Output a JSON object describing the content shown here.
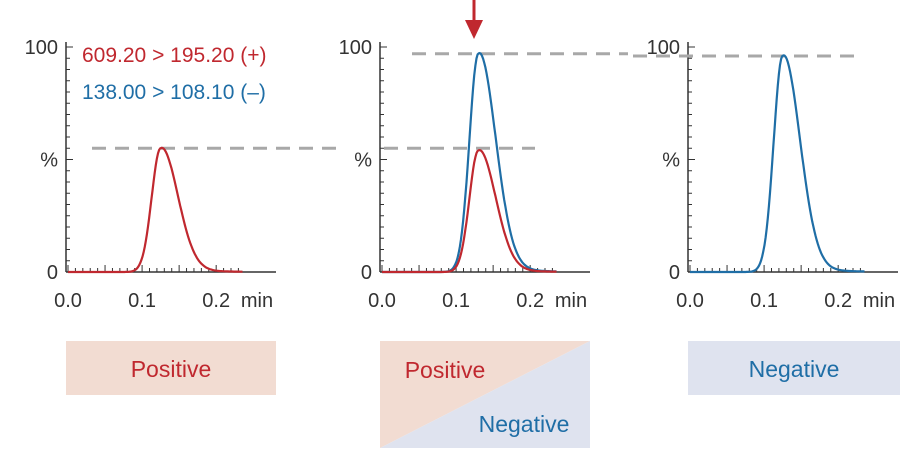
{
  "colors": {
    "positive": "#c0282f",
    "negative": "#1f6ea6",
    "dash": "#a8a8a8",
    "axis": "#333333",
    "pos_box": "#f2dcd2",
    "neg_box": "#dfe3ef",
    "arrow": "#c0282f"
  },
  "legend": {
    "positive": "609.20 > 195.20 (+)",
    "negative": "138.00 > 108.10 (–)"
  },
  "boxes": {
    "left": "Positive",
    "middle_pos": "Positive",
    "middle_neg": "Negative",
    "right": "Negative"
  },
  "chart_data": [
    {
      "type": "line",
      "x_ticks": [
        "0.0",
        "0.1",
        "0.2"
      ],
      "x_unit": "min",
      "y_ticks": [
        "0",
        "%",
        "100"
      ],
      "xlim": [
        0.0,
        0.235
      ],
      "ylim": [
        0,
        100
      ],
      "peak_reference": 55,
      "series": [
        {
          "key": "positive",
          "apex_x": 0.125,
          "apex_y": 55
        }
      ]
    },
    {
      "type": "line",
      "x_ticks": [
        "0.0",
        "0.1",
        "0.2"
      ],
      "x_unit": "min",
      "y_ticks": [
        "0",
        "%",
        "100"
      ],
      "xlim": [
        0.0,
        0.235
      ],
      "ylim": [
        0,
        100
      ],
      "peak_references": [
        55,
        97
      ],
      "series": [
        {
          "key": "negative",
          "apex_x": 0.13,
          "apex_y": 97
        },
        {
          "key": "positive",
          "apex_x": 0.13,
          "apex_y": 54
        }
      ]
    },
    {
      "type": "line",
      "x_ticks": [
        "0.0",
        "0.1",
        "0.2"
      ],
      "x_unit": "min",
      "y_ticks": [
        "0",
        "%",
        "100"
      ],
      "xlim": [
        0.0,
        0.235
      ],
      "ylim": [
        0,
        100
      ],
      "peak_reference": 96,
      "series": [
        {
          "key": "negative",
          "apex_x": 0.125,
          "apex_y": 96
        }
      ]
    }
  ]
}
